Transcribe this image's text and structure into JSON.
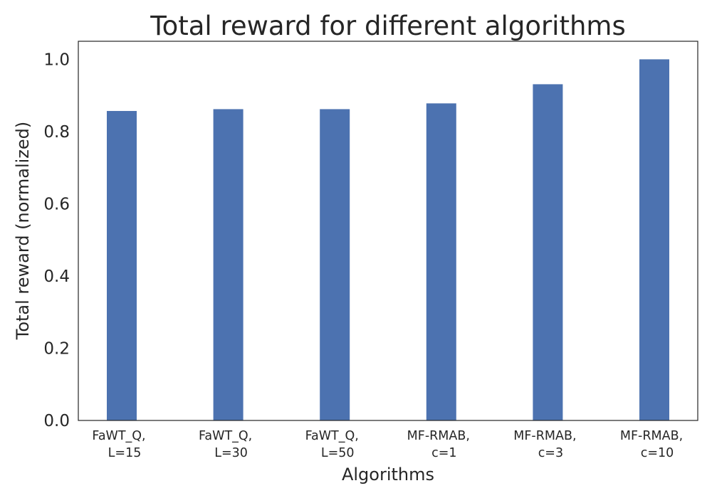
{
  "chart_data": {
    "type": "bar",
    "title": "Total reward for different algorithms",
    "xlabel": "Algorithms",
    "ylabel": "Total reward (normalized)",
    "categories": [
      [
        "FaWT_Q,",
        "L=15"
      ],
      [
        "FaWT_Q,",
        "L=30"
      ],
      [
        "FaWT_Q,",
        "L=50"
      ],
      [
        "MF-RMAB,",
        "c=1"
      ],
      [
        "MF-RMAB,",
        "c=3"
      ],
      [
        "MF-RMAB,",
        "c=10"
      ]
    ],
    "values": [
      0.857,
      0.862,
      0.862,
      0.878,
      0.931,
      1.0
    ],
    "ylim": [
      0,
      1.05
    ],
    "yticks": [
      "0.0",
      "0.2",
      "0.4",
      "0.6",
      "0.8",
      "1.0"
    ],
    "grid": false,
    "bar_color": "#4c72b0"
  }
}
